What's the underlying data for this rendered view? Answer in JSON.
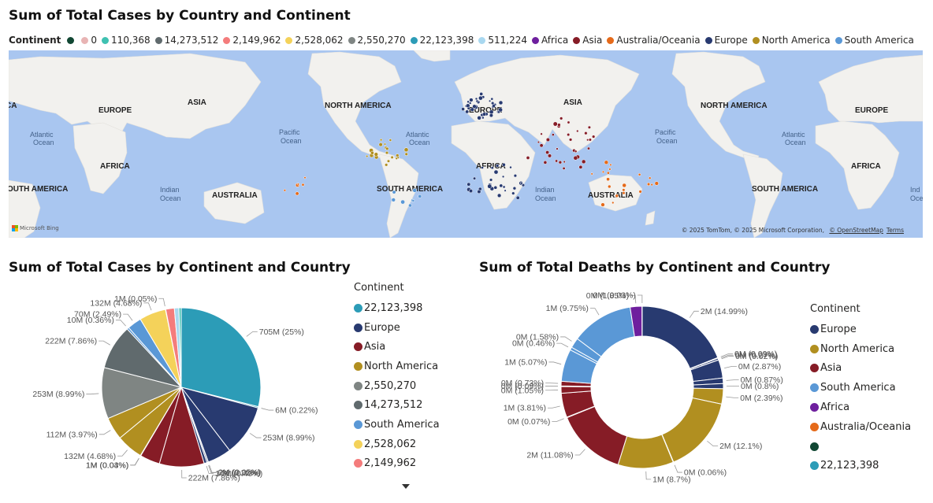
{
  "map_title": "Sum of Total Cases by Country and Continent",
  "map_legend": {
    "label": "Continent",
    "items": [
      {
        "text": "",
        "color": "#114733"
      },
      {
        "text": "0",
        "color": "#e8b4b4"
      },
      {
        "text": "110,368",
        "color": "#3fc1b1"
      },
      {
        "text": "14,273,512",
        "color": "#606a6d"
      },
      {
        "text": "2,149,962",
        "color": "#f47c7c"
      },
      {
        "text": "2,528,062",
        "color": "#f4d25a"
      },
      {
        "text": "2,550,270",
        "color": "#7f8583"
      },
      {
        "text": "22,123,398",
        "color": "#2c9cb7"
      },
      {
        "text": "511,224",
        "color": "#a9d8f0"
      },
      {
        "text": "Africa",
        "color": "#6e1f9e"
      },
      {
        "text": "Asia",
        "color": "#861c26"
      },
      {
        "text": "Australia/Oceania",
        "color": "#e56a1a"
      },
      {
        "text": "Europe",
        "color": "#283a70"
      },
      {
        "text": "North America",
        "color": "#b18f20"
      },
      {
        "text": "South America",
        "color": "#5a98d6"
      }
    ]
  },
  "map_labels": {
    "asia1": "ASIA",
    "europe1": "EUROPE",
    "africa1": "AFRICA",
    "samerica1": "OUTH AMERICA",
    "australia1": "AUSTRALIA",
    "namerica1": "NORTH AMERICA",
    "europe2": "EUROPE",
    "asia2": "ASIA",
    "africa2": "AFRICA",
    "samerica2": "SOUTH AMERICA",
    "australia2": "AUSTRALIA",
    "namerica2": "NORTH AMERICA",
    "europe3": "EUROPE",
    "africa3": "AFRICA",
    "samerica3": "SOUTH AMERICA",
    "ca": "CA",
    "atl1a": "Atlantic",
    "atl1b": "Ocean",
    "pac1a": "Pacific",
    "pac1b": "Ocean",
    "ind1a": "Indian",
    "ind1b": "Ocean",
    "atl2a": "Atlantic",
    "atl2b": "Ocean",
    "ind2a": "Indian",
    "ind2b": "Ocean",
    "pac2a": "Pacific",
    "pac2b": "Ocean",
    "atl3a": "Atlantic",
    "atl3b": "Ocean",
    "ind3a": "Ind",
    "ind3b": "Oce"
  },
  "map_brand": "Microsoft Bing",
  "map_attribution": "© 2025 TomTom, © 2025 Microsoft Corporation, ",
  "map_osm": "© OpenStreetMap",
  "map_terms": "Terms",
  "pie_title": "Sum of Total Cases by Continent and Country",
  "donut_title": "Sum of Total Deaths by Continent and Country",
  "pie_legend": {
    "label": "Continent",
    "items": [
      {
        "text": "22,123,398",
        "color": "#2c9cb7"
      },
      {
        "text": "Europe",
        "color": "#283a70"
      },
      {
        "text": "Asia",
        "color": "#861c26"
      },
      {
        "text": "North America",
        "color": "#b18f20"
      },
      {
        "text": "2,550,270",
        "color": "#7f8583"
      },
      {
        "text": "14,273,512",
        "color": "#606a6d"
      },
      {
        "text": "South America",
        "color": "#5a98d6"
      },
      {
        "text": "2,528,062",
        "color": "#f4d25a"
      },
      {
        "text": "2,149,962",
        "color": "#f47c7c"
      }
    ]
  },
  "donut_legend": {
    "label": "Continent",
    "items": [
      {
        "text": "Europe",
        "color": "#283a70"
      },
      {
        "text": "North America",
        "color": "#b18f20"
      },
      {
        "text": "Asia",
        "color": "#861c26"
      },
      {
        "text": "South America",
        "color": "#5a98d6"
      },
      {
        "text": "Africa",
        "color": "#6e1f9e"
      },
      {
        "text": "Australia/Oceania",
        "color": "#e56a1a"
      },
      {
        "text": "",
        "color": "#114733"
      },
      {
        "text": "22,123,398",
        "color": "#2c9cb7"
      }
    ]
  },
  "chart_data": [
    {
      "type": "pie",
      "title": "Sum of Total Cases by Continent and Country",
      "slices": [
        {
          "label": "705M (25%)",
          "value": 25,
          "color": "#2c9cb7"
        },
        {
          "label": "6M (0.22%)",
          "value": 0.22,
          "color": "#2c9cb7"
        },
        {
          "label": "253M (8.99%)",
          "value": 8.99,
          "color": "#283a70"
        },
        {
          "label": "",
          "value": 4.2,
          "color": "#283a70"
        },
        {
          "label": "2M (0.05%)",
          "value": 0.05,
          "color": "#283a70"
        },
        {
          "label": "6M (0.22%)",
          "value": 0.22,
          "color": "#283a70"
        },
        {
          "label": "14M (0.49%)",
          "value": 0.49,
          "color": "#283a70"
        },
        {
          "label": "222M (7.86%)",
          "value": 7.86,
          "color": "#861c26"
        },
        {
          "label": "",
          "value": 3.5,
          "color": "#861c26"
        },
        {
          "label": "1M (0.03%)",
          "value": 0.03,
          "color": "#861c26"
        },
        {
          "label": "1M (0.04%)",
          "value": 0.04,
          "color": "#b18f20"
        },
        {
          "label": "132M (4.68%)",
          "value": 4.68,
          "color": "#b18f20"
        },
        {
          "label": "112M (3.97%)",
          "value": 3.97,
          "color": "#b18f20"
        },
        {
          "label": "253M (8.99%)",
          "value": 8.99,
          "color": "#7f8583"
        },
        {
          "label": "222M (7.86%)",
          "value": 7.86,
          "color": "#606a6d"
        },
        {
          "label": "10M (0.36%)",
          "value": 0.36,
          "color": "#5a98d6"
        },
        {
          "label": "70M (2.49%)",
          "value": 2.49,
          "color": "#5a98d6"
        },
        {
          "label": "132M (4.68%)",
          "value": 4.68,
          "color": "#f4d25a"
        },
        {
          "label": "1M (0.05%)",
          "value": 0.05,
          "color": "#f47c7c"
        },
        {
          "label": "",
          "value": 1.5,
          "color": "#f47c7c"
        },
        {
          "label": "",
          "value": 0.8,
          "color": "#a9d8f0"
        },
        {
          "label": "",
          "value": 0.4,
          "color": "#3fc1b1"
        }
      ]
    },
    {
      "type": "pie",
      "title": "Sum of Total Deaths by Continent and Country",
      "donut": true,
      "slices": [
        {
          "label": "2M (14.99%)",
          "value": 14.99,
          "color": "#283a70"
        },
        {
          "label": "0M (0.09%)",
          "value": 0.09,
          "color": "#283a70"
        },
        {
          "label": "0M (0.27%)",
          "value": 0.27,
          "color": "#283a70"
        },
        {
          "label": "0M (0.02%)",
          "value": 0.02,
          "color": "#283a70"
        },
        {
          "label": "0M (2.87%)",
          "value": 2.87,
          "color": "#283a70"
        },
        {
          "label": "0M (0.87%)",
          "value": 0.87,
          "color": "#283a70"
        },
        {
          "label": "0M (0.8%)",
          "value": 0.8,
          "color": "#283a70"
        },
        {
          "label": "0M (2.39%)",
          "value": 2.39,
          "color": "#b18f20"
        },
        {
          "label": "2M (12.1%)",
          "value": 12.1,
          "color": "#b18f20"
        },
        {
          "label": "0M (0.06%)",
          "value": 0.06,
          "color": "#b18f20"
        },
        {
          "label": "1M (8.7%)",
          "value": 8.7,
          "color": "#b18f20"
        },
        {
          "label": "2M (11.08%)",
          "value": 11.08,
          "color": "#861c26"
        },
        {
          "label": "0M (0.07%)",
          "value": 0.07,
          "color": "#861c26"
        },
        {
          "label": "1M (3.81%)",
          "value": 3.81,
          "color": "#861c26"
        },
        {
          "label": "0M (1.05%)",
          "value": 1.05,
          "color": "#861c26"
        },
        {
          "label": "0M (0.09%)",
          "value": 0.09,
          "color": "#861c26"
        },
        {
          "label": "0M (0.73%)",
          "value": 0.73,
          "color": "#861c26"
        },
        {
          "label": "1M (5.07%)",
          "value": 5.07,
          "color": "#5a98d6"
        },
        {
          "label": "0M (0.46%)",
          "value": 0.46,
          "color": "#5a98d6"
        },
        {
          "label": "0M (1.58%)",
          "value": 1.58,
          "color": "#5a98d6"
        },
        {
          "label": "1M (9.75%)",
          "value": 9.75,
          "color": "#5a98d6"
        },
        {
          "label": "0M (1.85%)",
          "value": 1.85,
          "color": "#6e1f9e"
        },
        {
          "label": "0M (0.03%)",
          "value": 0.03,
          "color": "#6e1f9e"
        }
      ]
    }
  ]
}
